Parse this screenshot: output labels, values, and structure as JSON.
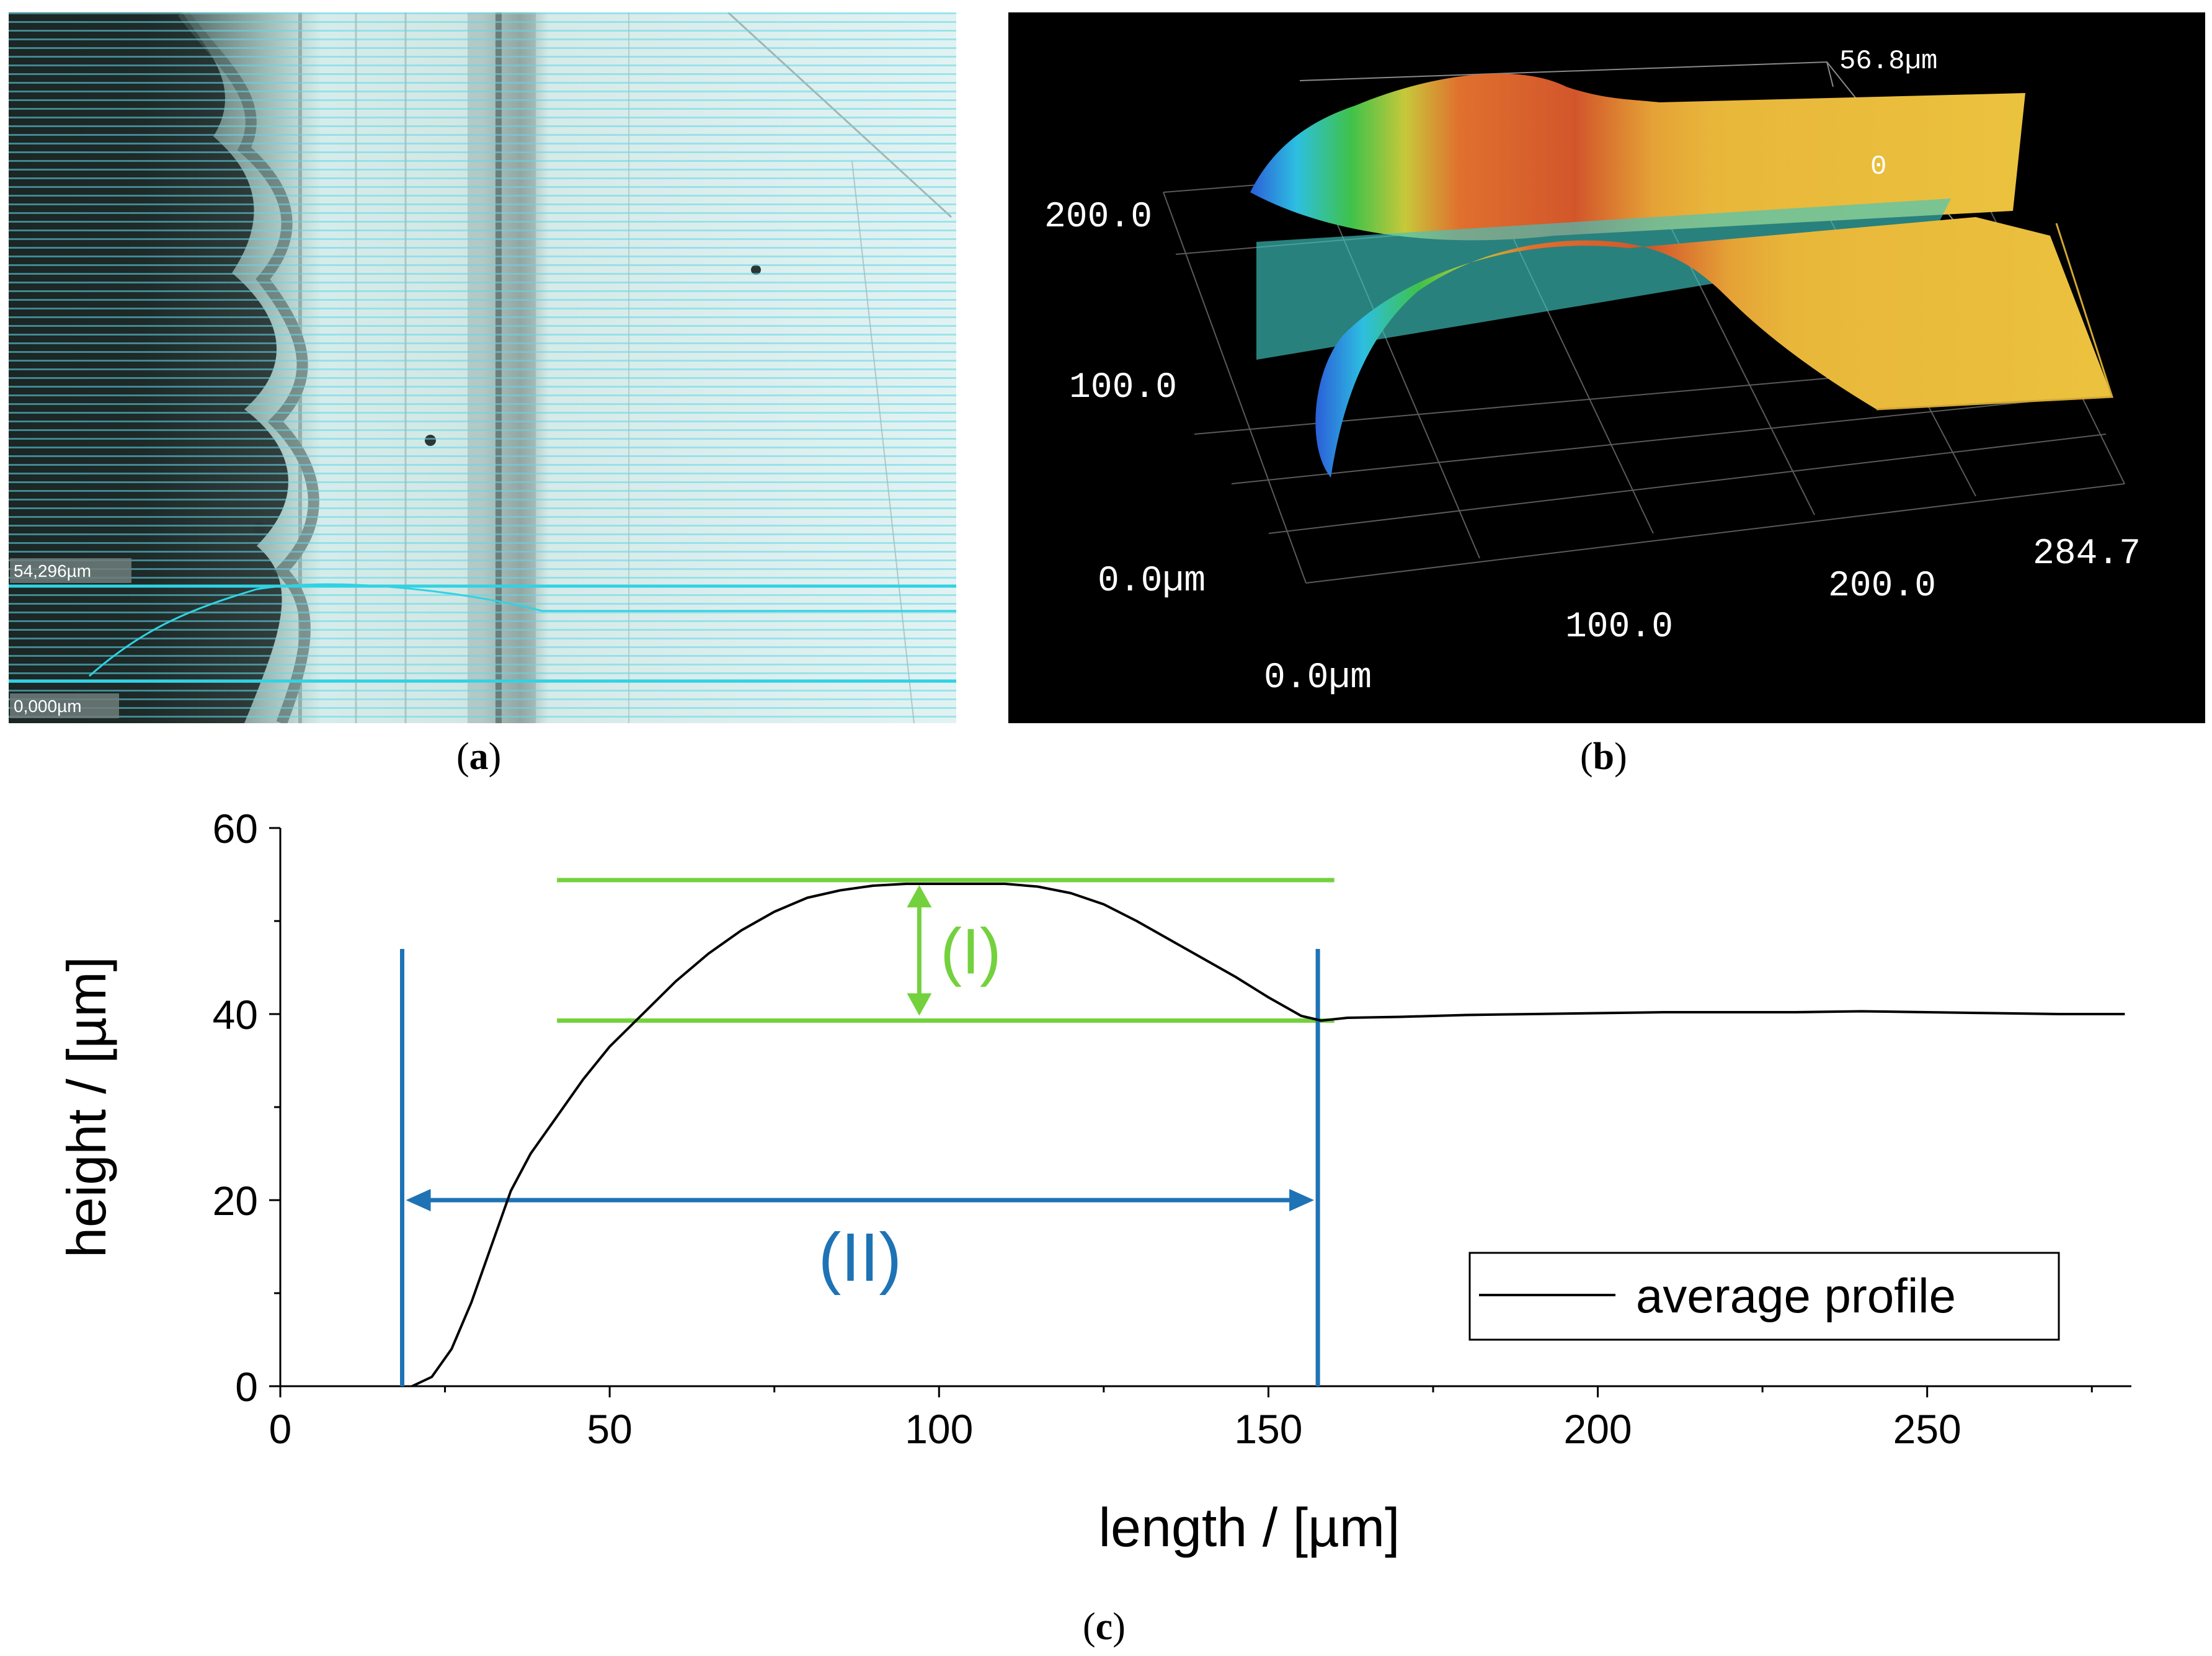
{
  "panel_a": {
    "caption": "a",
    "labels": {
      "upper": "54,296µm",
      "lower": "0,000µm"
    },
    "colors": {
      "scan_line": "#2fd3e3",
      "background": "#dcefed"
    }
  },
  "panel_b": {
    "caption": "b",
    "z_top": "56.8µm",
    "z_mid": "0",
    "y_labels": [
      "200.0",
      "100.0",
      "0.0µm"
    ],
    "x_labels": [
      "0.0µm",
      "100.0",
      "200.0",
      "284.7"
    ]
  },
  "panel_c": {
    "caption": "c",
    "annotation_I": "(I)",
    "annotation_II": "(II)",
    "legend": "average profile",
    "colors": {
      "green": "#74d13e",
      "blue": "#1e73b5",
      "line": "#000000"
    }
  },
  "chart_data": {
    "type": "line",
    "xlabel": "length  /  [µm]",
    "ylabel": "height  /  [µm]",
    "xlim": [
      0,
      281
    ],
    "ylim": [
      0,
      60
    ],
    "xticks": [
      0,
      50,
      100,
      150,
      200,
      250
    ],
    "yticks": [
      0,
      20,
      40,
      60
    ],
    "series": [
      {
        "name": "average profile",
        "x": [
          20,
          23,
          26,
          29,
          32,
          35,
          38,
          42,
          46,
          50,
          55,
          60,
          65,
          70,
          75,
          80,
          85,
          90,
          95,
          100,
          105,
          110,
          115,
          120,
          125,
          130,
          135,
          140,
          145,
          150,
          155,
          158,
          162,
          170,
          180,
          190,
          200,
          210,
          220,
          230,
          240,
          250,
          260,
          270,
          280
        ],
        "y": [
          0,
          1,
          4,
          9,
          15,
          21,
          25,
          29,
          33,
          36.5,
          40,
          43.5,
          46.5,
          49,
          51,
          52.5,
          53.3,
          53.8,
          54,
          54,
          54,
          54,
          53.7,
          53,
          51.8,
          50,
          48,
          46,
          44,
          41.8,
          39.8,
          39.3,
          39.6,
          39.7,
          39.9,
          40.0,
          40.1,
          40.2,
          40.2,
          40.2,
          40.3,
          40.2,
          40.1,
          40.0,
          40.0
        ]
      }
    ],
    "annotations": [
      {
        "label": "(I)",
        "kind": "vertical-double-arrow",
        "x": 97,
        "y_from": 39.3,
        "y_to": 54.4,
        "ref_lines_y": [
          54.4,
          39.3
        ],
        "ref_lines_x": [
          42,
          160
        ]
      },
      {
        "label": "(II)",
        "kind": "horizontal-double-arrow",
        "y": 20,
        "x_from": 18.5,
        "x_to": 157.5,
        "boundary_x": [
          18.5,
          157.5
        ],
        "boundary_top": 47
      }
    ],
    "legend_position": "bottom-right"
  }
}
